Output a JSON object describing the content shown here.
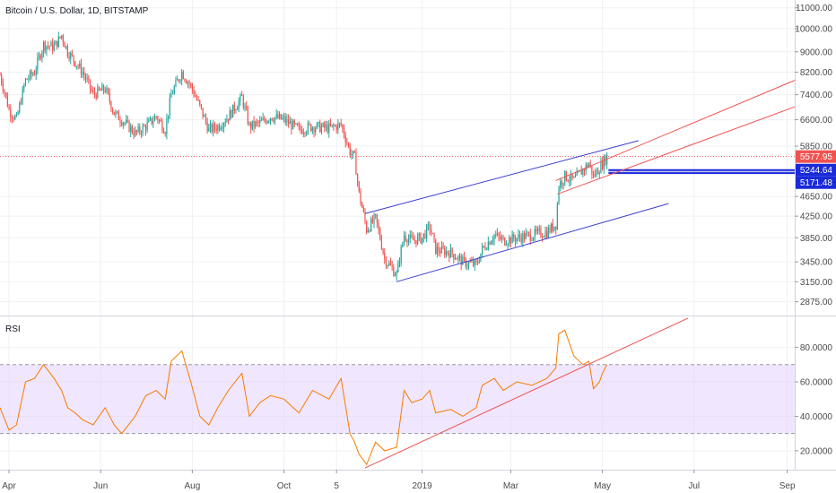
{
  "chart_data": [
    {
      "type": "candlestick",
      "title": "Bitcoin / U.S. Dollar, 1D, BITSTAMP",
      "y_scale": "log",
      "ylim": [
        2700,
        11400
      ],
      "y_ticks": [
        "11000.00",
        "10000.00",
        "9000.00",
        "8200.00",
        "7400.00",
        "6600.00",
        "5850.00",
        "4650.00",
        "4250.00",
        "3850.00",
        "3450.00",
        "3150.00",
        "2875.00"
      ],
      "y_tick_values": [
        11000,
        10000,
        9000,
        8200,
        7400,
        6600,
        5850,
        4650,
        4250,
        3850,
        3450,
        3150,
        2875
      ],
      "x_range": [
        "2018-03-26",
        "2019-09-06"
      ],
      "x_ticks": [
        "Apr",
        "Jun",
        "Aug",
        "Oct",
        "5",
        "2019",
        "Mar",
        "May",
        "Jul",
        "Sep"
      ],
      "x_tick_dates": [
        "2018-04-01",
        "2018-06-01",
        "2018-08-01",
        "2018-10-01",
        "2018-11-05",
        "2019-01-01",
        "2019-03-01",
        "2019-05-01",
        "2019-07-01",
        "2019-09-01"
      ],
      "grid": true,
      "candle_colors": {
        "up": "#26a69a",
        "down": "#ef5350"
      },
      "closes": [
        [
          "2018-03-26",
          8100
        ],
        [
          "2018-04-01",
          6900
        ],
        [
          "2018-04-06",
          6600
        ],
        [
          "2018-04-12",
          7900
        ],
        [
          "2018-04-18",
          8200
        ],
        [
          "2018-04-24",
          9300
        ],
        [
          "2018-05-01",
          9200
        ],
        [
          "2018-05-06",
          9700
        ],
        [
          "2018-05-10",
          9000
        ],
        [
          "2018-05-15",
          8600
        ],
        [
          "2018-05-20",
          8200
        ],
        [
          "2018-05-27",
          7400
        ],
        [
          "2018-06-04",
          7600
        ],
        [
          "2018-06-10",
          6800
        ],
        [
          "2018-06-15",
          6600
        ],
        [
          "2018-06-24",
          6200
        ],
        [
          "2018-07-01",
          6400
        ],
        [
          "2018-07-08",
          6700
        ],
        [
          "2018-07-14",
          6300
        ],
        [
          "2018-07-18",
          7400
        ],
        [
          "2018-07-25",
          8200
        ],
        [
          "2018-07-31",
          7700
        ],
        [
          "2018-08-06",
          7000
        ],
        [
          "2018-08-12",
          6300
        ],
        [
          "2018-08-18",
          6400
        ],
        [
          "2018-08-25",
          6700
        ],
        [
          "2018-09-03",
          7300
        ],
        [
          "2018-09-08",
          6400
        ],
        [
          "2018-09-15",
          6500
        ],
        [
          "2018-09-22",
          6700
        ],
        [
          "2018-10-01",
          6600
        ],
        [
          "2018-10-11",
          6300
        ],
        [
          "2018-10-20",
          6400
        ],
        [
          "2018-10-31",
          6350
        ],
        [
          "2018-11-08",
          6450
        ],
        [
          "2018-11-14",
          5700
        ],
        [
          "2018-11-17",
          5550
        ],
        [
          "2018-11-20",
          4700
        ],
        [
          "2018-11-25",
          4000
        ],
        [
          "2018-12-01",
          4200
        ],
        [
          "2018-12-07",
          3500
        ],
        [
          "2018-12-15",
          3250
        ],
        [
          "2018-12-20",
          3900
        ],
        [
          "2018-12-25",
          3800
        ],
        [
          "2019-01-01",
          3850
        ],
        [
          "2019-01-06",
          4050
        ],
        [
          "2019-01-10",
          3650
        ],
        [
          "2019-01-20",
          3600
        ],
        [
          "2019-01-28",
          3450
        ],
        [
          "2019-02-06",
          3400
        ],
        [
          "2019-02-10",
          3650
        ],
        [
          "2019-02-18",
          3900
        ],
        [
          "2019-02-24",
          3800
        ],
        [
          "2019-03-05",
          3850
        ],
        [
          "2019-03-15",
          3900
        ],
        [
          "2019-03-25",
          3950
        ],
        [
          "2019-03-31",
          4100
        ],
        [
          "2019-04-02",
          4900
        ],
        [
          "2019-04-06",
          5100
        ],
        [
          "2019-04-12",
          5000
        ],
        [
          "2019-04-18",
          5250
        ],
        [
          "2019-04-22",
          5400
        ],
        [
          "2019-04-25",
          5100
        ],
        [
          "2019-04-29",
          5300
        ],
        [
          "2019-05-01",
          5400
        ],
        [
          "2019-05-04",
          5578
        ]
      ],
      "price_line": {
        "value": 5577.95,
        "label": "5577.95",
        "color": "#ef5350"
      },
      "price_labels": [
        {
          "label": "5244.64",
          "value": 5244.64,
          "color": "#1b2ad8"
        },
        {
          "label": "5171.48",
          "value": 5171.48,
          "color": "#1b2ad8"
        }
      ],
      "trendlines": [
        {
          "color": "#3a3fd0",
          "from": [
            "2018-11-24",
            4300
          ],
          "to": [
            "2019-05-25",
            6000
          ]
        },
        {
          "color": "#3a3fd0",
          "from": [
            "2018-12-15",
            3150
          ],
          "to": [
            "2019-06-14",
            4500
          ]
        },
        {
          "color": "#ef5350",
          "from": [
            "2019-03-31",
            5000
          ],
          "to": [
            "2019-09-06",
            7900
          ]
        },
        {
          "color": "#ef5350",
          "from": [
            "2019-04-01",
            4700
          ],
          "to": [
            "2019-09-06",
            7000
          ]
        }
      ],
      "support_zone": {
        "from_date": "2019-05-05",
        "low": 5171.48,
        "high": 5244.64,
        "color": "#1b2ad8"
      }
    },
    {
      "type": "line",
      "title": "RSI",
      "ylim": [
        9,
        98
      ],
      "y_ticks": [
        "80.0000",
        "60.0000",
        "40.0000",
        "20.0000"
      ],
      "y_tick_values": [
        80,
        60,
        40,
        20
      ],
      "band": {
        "low": 30,
        "high": 70,
        "color": "#e6d5fb"
      },
      "line_color": "#f57c00",
      "series": [
        [
          "2018-03-26",
          45
        ],
        [
          "2018-04-01",
          32
        ],
        [
          "2018-04-06",
          35
        ],
        [
          "2018-04-12",
          60
        ],
        [
          "2018-04-18",
          62
        ],
        [
          "2018-04-24",
          70
        ],
        [
          "2018-05-01",
          62
        ],
        [
          "2018-05-06",
          55
        ],
        [
          "2018-05-10",
          45
        ],
        [
          "2018-05-15",
          42
        ],
        [
          "2018-05-20",
          38
        ],
        [
          "2018-05-27",
          35
        ],
        [
          "2018-06-04",
          45
        ],
        [
          "2018-06-10",
          35
        ],
        [
          "2018-06-15",
          30
        ],
        [
          "2018-06-24",
          40
        ],
        [
          "2018-07-01",
          52
        ],
        [
          "2018-07-08",
          55
        ],
        [
          "2018-07-14",
          50
        ],
        [
          "2018-07-18",
          72
        ],
        [
          "2018-07-25",
          78
        ],
        [
          "2018-07-31",
          60
        ],
        [
          "2018-08-06",
          40
        ],
        [
          "2018-08-12",
          35
        ],
        [
          "2018-08-18",
          45
        ],
        [
          "2018-08-25",
          55
        ],
        [
          "2018-09-03",
          65
        ],
        [
          "2018-09-08",
          40
        ],
        [
          "2018-09-15",
          48
        ],
        [
          "2018-09-22",
          52
        ],
        [
          "2018-10-01",
          50
        ],
        [
          "2018-10-11",
          42
        ],
        [
          "2018-10-20",
          55
        ],
        [
          "2018-10-31",
          50
        ],
        [
          "2018-11-08",
          62
        ],
        [
          "2018-11-14",
          30
        ],
        [
          "2018-11-17",
          25
        ],
        [
          "2018-11-20",
          18
        ],
        [
          "2018-11-25",
          12
        ],
        [
          "2018-12-01",
          25
        ],
        [
          "2018-12-07",
          20
        ],
        [
          "2018-12-15",
          22
        ],
        [
          "2018-12-20",
          55
        ],
        [
          "2018-12-25",
          48
        ],
        [
          "2019-01-01",
          50
        ],
        [
          "2019-01-06",
          55
        ],
        [
          "2019-01-10",
          42
        ],
        [
          "2019-01-20",
          44
        ],
        [
          "2019-01-28",
          40
        ],
        [
          "2019-02-06",
          45
        ],
        [
          "2019-02-10",
          58
        ],
        [
          "2019-02-18",
          62
        ],
        [
          "2019-02-24",
          55
        ],
        [
          "2019-03-05",
          60
        ],
        [
          "2019-03-15",
          58
        ],
        [
          "2019-03-25",
          62
        ],
        [
          "2019-03-31",
          68
        ],
        [
          "2019-04-02",
          88
        ],
        [
          "2019-04-06",
          90
        ],
        [
          "2019-04-12",
          75
        ],
        [
          "2019-04-18",
          70
        ],
        [
          "2019-04-22",
          72
        ],
        [
          "2019-04-25",
          56
        ],
        [
          "2019-04-29",
          60
        ],
        [
          "2019-05-01",
          65
        ],
        [
          "2019-05-04",
          70
        ]
      ],
      "trendline": {
        "color": "#ef5350",
        "from": [
          "2018-11-24",
          10
        ],
        "to": [
          "2019-06-27",
          97
        ]
      }
    }
  ]
}
